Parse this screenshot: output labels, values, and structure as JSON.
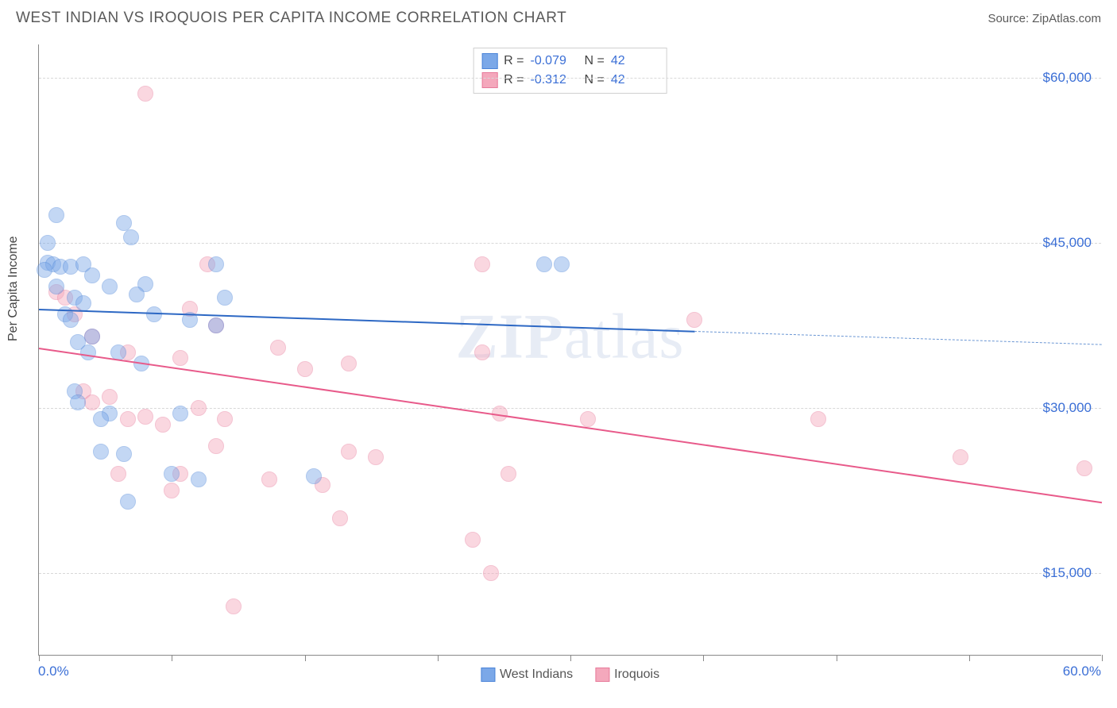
{
  "title": "WEST INDIAN VS IROQUOIS PER CAPITA INCOME CORRELATION CHART",
  "source": "Source: ZipAtlas.com",
  "ylabel": "Per Capita Income",
  "watermark_zip": "ZIP",
  "watermark_atlas": "atlas",
  "chart": {
    "type": "scatter",
    "background_color": "#ffffff",
    "grid_color": "#d8d8d8",
    "xlim": [
      0,
      60
    ],
    "ylim": [
      7500,
      63000
    ],
    "y_gridlines": [
      15000,
      30000,
      45000,
      60000
    ],
    "y_labels": [
      "$15,000",
      "$30,000",
      "$45,000",
      "$60,000"
    ],
    "xtick_positions": [
      0,
      7.5,
      15,
      22.5,
      30,
      37.5,
      45,
      52.5,
      60
    ],
    "x_start_label": "0.0%",
    "x_end_label": "60.0%",
    "marker_radius": 10,
    "marker_opacity": 0.45,
    "series": {
      "blue": {
        "label": "West Indians",
        "fill": "#7ba8e8",
        "stroke": "#4b84d8",
        "r_value": "-0.079",
        "n_value": "42",
        "trend": {
          "x1": 0,
          "y1": 39000,
          "x2": 37,
          "y2": 37000,
          "solid_color": "#2d68c4",
          "width": 2.5
        },
        "trend_extend": {
          "x1": 37,
          "y1": 37000,
          "x2": 60,
          "y2": 35800,
          "color": "#6a96d4"
        },
        "points": [
          [
            1.0,
            47500
          ],
          [
            0.5,
            43200
          ],
          [
            0.8,
            43000
          ],
          [
            0.3,
            42500
          ],
          [
            1.2,
            42800
          ],
          [
            1.8,
            42800
          ],
          [
            2.5,
            43000
          ],
          [
            3.0,
            42000
          ],
          [
            4.8,
            46800
          ],
          [
            5.2,
            45500
          ],
          [
            6.0,
            41200
          ],
          [
            4.0,
            41000
          ],
          [
            5.5,
            40300
          ],
          [
            2.0,
            40000
          ],
          [
            1.5,
            38500
          ],
          [
            1.8,
            38000
          ],
          [
            2.2,
            36000
          ],
          [
            3.0,
            36500
          ],
          [
            2.8,
            35000
          ],
          [
            4.5,
            35000
          ],
          [
            5.8,
            34000
          ],
          [
            6.5,
            38500
          ],
          [
            8.5,
            38000
          ],
          [
            10.0,
            43000
          ],
          [
            10.5,
            40000
          ],
          [
            10.0,
            37500
          ],
          [
            8.0,
            29500
          ],
          [
            4.0,
            29500
          ],
          [
            3.5,
            26000
          ],
          [
            4.8,
            25800
          ],
          [
            2.0,
            31500
          ],
          [
            2.2,
            30500
          ],
          [
            3.5,
            29000
          ],
          [
            5.0,
            21500
          ],
          [
            7.5,
            24000
          ],
          [
            9.0,
            23500
          ],
          [
            15.5,
            23800
          ],
          [
            28.5,
            43000
          ],
          [
            29.5,
            43000
          ],
          [
            0.5,
            45000
          ],
          [
            1.0,
            41000
          ],
          [
            2.5,
            39500
          ]
        ]
      },
      "pink": {
        "label": "Iroquois",
        "fill": "#f4a8bc",
        "stroke": "#e77a9a",
        "r_value": "-0.312",
        "n_value": "42",
        "trend": {
          "x1": 0,
          "y1": 35500,
          "x2": 60,
          "y2": 21500,
          "solid_color": "#e85a8a",
          "width": 2.5
        },
        "points": [
          [
            1.0,
            40500
          ],
          [
            1.5,
            40000
          ],
          [
            2.0,
            38500
          ],
          [
            3.0,
            36500
          ],
          [
            5.0,
            35000
          ],
          [
            6.0,
            58500
          ],
          [
            9.5,
            43000
          ],
          [
            8.5,
            39000
          ],
          [
            8.0,
            34500
          ],
          [
            10.0,
            37500
          ],
          [
            13.5,
            35500
          ],
          [
            15.0,
            33500
          ],
          [
            17.5,
            34000
          ],
          [
            2.5,
            31500
          ],
          [
            3.0,
            30500
          ],
          [
            4.0,
            31000
          ],
          [
            5.0,
            29000
          ],
          [
            4.5,
            24000
          ],
          [
            6.0,
            29200
          ],
          [
            7.0,
            28500
          ],
          [
            9.0,
            30000
          ],
          [
            10.5,
            29000
          ],
          [
            10.0,
            26500
          ],
          [
            8.0,
            24000
          ],
          [
            7.5,
            22500
          ],
          [
            13.0,
            23500
          ],
          [
            16.0,
            23000
          ],
          [
            17.0,
            20000
          ],
          [
            17.5,
            26000
          ],
          [
            19.0,
            25500
          ],
          [
            25.0,
            43000
          ],
          [
            26.0,
            29500
          ],
          [
            26.5,
            24000
          ],
          [
            24.5,
            18000
          ],
          [
            25.5,
            15000
          ],
          [
            31.0,
            29000
          ],
          [
            37.0,
            38000
          ],
          [
            44.0,
            29000
          ],
          [
            52.0,
            25500
          ],
          [
            59.0,
            24500
          ],
          [
            11.0,
            12000
          ],
          [
            25.0,
            35000
          ]
        ]
      }
    }
  },
  "colors": {
    "axis": "#888888",
    "label_blue": "#3b6fd6",
    "text_gray": "#5a5a5a"
  }
}
